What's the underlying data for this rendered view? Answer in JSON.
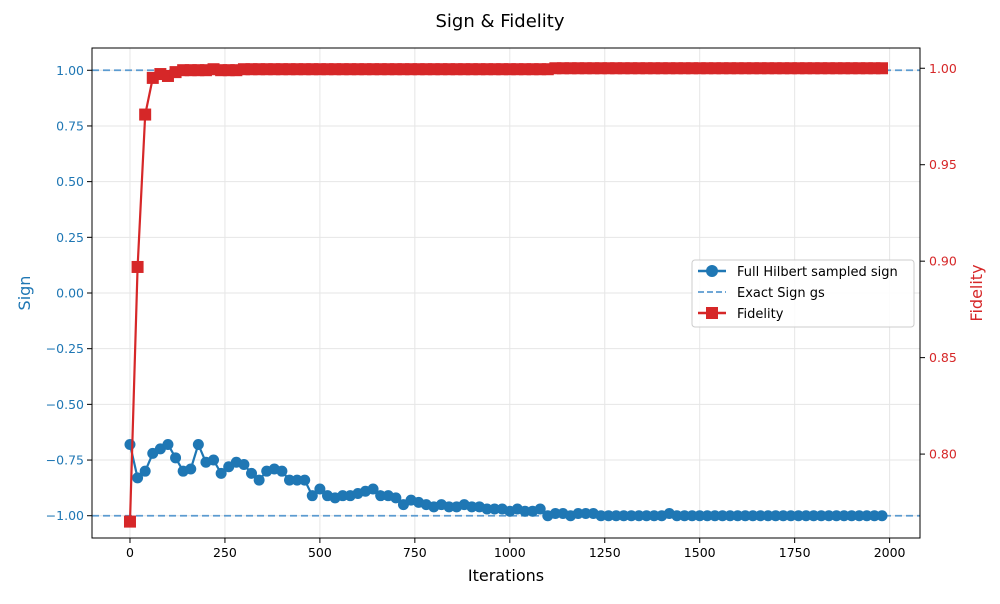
{
  "chart_data": {
    "type": "line",
    "title": "Sign & Fidelity",
    "xlabel": "Iterations",
    "ylabel_left": "Sign",
    "ylabel_right": "Fidelity",
    "xlim": [
      -100,
      2080
    ],
    "ylim_left": [
      -1.1,
      1.1
    ],
    "ylim_right": [
      0.7565,
      1.0105
    ],
    "x_ticks": [
      0,
      250,
      500,
      750,
      1000,
      1250,
      1500,
      1750,
      2000
    ],
    "y_ticks_left": [
      -1.0,
      -0.75,
      -0.5,
      -0.25,
      0.0,
      0.25,
      0.5,
      0.75,
      1.0
    ],
    "y_ticks_left_labels": [
      "−1.00",
      "−0.75",
      "−0.50",
      "−0.25",
      "0.00",
      "0.25",
      "0.50",
      "0.75",
      "1.00"
    ],
    "y_ticks_right": [
      0.8,
      0.85,
      0.9,
      0.95,
      1.0
    ],
    "y_ticks_right_labels": [
      "0.80",
      "0.85",
      "0.90",
      "0.95",
      "1.00"
    ],
    "grid": true,
    "legend_position": "center-right",
    "colors": {
      "sign": "#1f77b4",
      "fidelity": "#d62728",
      "exact": "#5b9bd0"
    },
    "series": [
      {
        "name": "Full Hilbert sampled sign",
        "axis": "left",
        "marker": "circle",
        "x": [
          0,
          20,
          40,
          60,
          80,
          100,
          120,
          140,
          160,
          180,
          200,
          220,
          240,
          260,
          280,
          300,
          320,
          340,
          360,
          380,
          400,
          420,
          440,
          460,
          480,
          500,
          520,
          540,
          560,
          580,
          600,
          620,
          640,
          660,
          680,
          700,
          720,
          740,
          760,
          780,
          800,
          820,
          840,
          860,
          880,
          900,
          920,
          940,
          960,
          980,
          1000,
          1020,
          1040,
          1060,
          1080,
          1100,
          1120,
          1140,
          1160,
          1180,
          1200,
          1220,
          1240,
          1260,
          1280,
          1300,
          1320,
          1340,
          1360,
          1380,
          1400,
          1420,
          1440,
          1460,
          1480,
          1500,
          1520,
          1540,
          1560,
          1580,
          1600,
          1620,
          1640,
          1660,
          1680,
          1700,
          1720,
          1740,
          1760,
          1780,
          1800,
          1820,
          1840,
          1860,
          1880,
          1900,
          1920,
          1940,
          1960,
          1980
        ],
        "values": [
          -0.68,
          -0.83,
          -0.8,
          -0.72,
          -0.7,
          -0.68,
          -0.74,
          -0.8,
          -0.79,
          -0.68,
          -0.76,
          -0.75,
          -0.81,
          -0.78,
          -0.76,
          -0.77,
          -0.81,
          -0.84,
          -0.8,
          -0.79,
          -0.8,
          -0.84,
          -0.84,
          -0.84,
          -0.91,
          -0.88,
          -0.91,
          -0.92,
          -0.91,
          -0.91,
          -0.9,
          -0.89,
          -0.88,
          -0.91,
          -0.91,
          -0.92,
          -0.95,
          -0.93,
          -0.94,
          -0.95,
          -0.96,
          -0.95,
          -0.96,
          -0.96,
          -0.95,
          -0.96,
          -0.96,
          -0.97,
          -0.97,
          -0.97,
          -0.98,
          -0.97,
          -0.98,
          -0.98,
          -0.97,
          -1.0,
          -0.99,
          -0.99,
          -1.0,
          -0.99,
          -0.99,
          -0.99,
          -1.0,
          -1.0,
          -1.0,
          -1.0,
          -1.0,
          -1.0,
          -1.0,
          -1.0,
          -1.0,
          -0.99,
          -1.0,
          -1.0,
          -1.0,
          -1.0,
          -1.0,
          -1.0,
          -1.0,
          -1.0,
          -1.0,
          -1.0,
          -1.0,
          -1.0,
          -1.0,
          -1.0,
          -1.0,
          -1.0,
          -1.0,
          -1.0,
          -1.0,
          -1.0,
          -1.0,
          -1.0,
          -1.0,
          -1.0,
          -1.0,
          -1.0,
          -1.0,
          -1.0
        ]
      },
      {
        "name": "Exact Sign gs",
        "axis": "left",
        "style": "dashed",
        "hlines": [
          1.0,
          -1.0
        ]
      },
      {
        "name": "Fidelity",
        "axis": "right",
        "marker": "square",
        "x": [
          0,
          20,
          40,
          60,
          80,
          100,
          120,
          140,
          160,
          180,
          200,
          220,
          240,
          260,
          280,
          300,
          320,
          340,
          360,
          380,
          400,
          420,
          440,
          460,
          480,
          500,
          520,
          540,
          560,
          580,
          600,
          620,
          640,
          660,
          680,
          700,
          720,
          740,
          760,
          780,
          800,
          820,
          840,
          860,
          880,
          900,
          920,
          940,
          960,
          980,
          1000,
          1020,
          1040,
          1060,
          1080,
          1100,
          1120,
          1140,
          1160,
          1180,
          1200,
          1220,
          1240,
          1260,
          1280,
          1300,
          1320,
          1340,
          1360,
          1380,
          1400,
          1420,
          1440,
          1460,
          1480,
          1500,
          1520,
          1540,
          1560,
          1580,
          1600,
          1620,
          1640,
          1660,
          1680,
          1700,
          1720,
          1740,
          1760,
          1780,
          1800,
          1820,
          1840,
          1860,
          1880,
          1900,
          1920,
          1940,
          1960,
          1980
        ],
        "values": [
          0.765,
          0.897,
          0.976,
          0.995,
          0.997,
          0.996,
          0.998,
          0.999,
          0.999,
          0.999,
          0.999,
          0.9995,
          0.999,
          0.999,
          0.999,
          0.9995,
          0.9995,
          0.9995,
          0.9995,
          0.9995,
          0.9995,
          0.9995,
          0.9995,
          0.9995,
          0.9995,
          0.9995,
          0.9995,
          0.9995,
          0.9995,
          0.9995,
          0.9995,
          0.9995,
          0.9995,
          0.9995,
          0.9995,
          0.9995,
          0.9995,
          0.9995,
          0.9995,
          0.9995,
          0.9995,
          0.9995,
          0.9995,
          0.9995,
          0.9995,
          0.9995,
          0.9995,
          0.9995,
          0.9995,
          0.9995,
          0.9995,
          0.9995,
          0.9995,
          0.9995,
          0.9995,
          0.9995,
          1.0,
          1.0,
          1.0,
          1.0,
          1.0,
          1.0,
          1.0,
          1.0,
          1.0,
          1.0,
          1.0,
          1.0,
          1.0,
          1.0,
          1.0,
          1.0,
          1.0,
          1.0,
          1.0,
          1.0,
          1.0,
          1.0,
          1.0,
          1.0,
          1.0,
          1.0,
          1.0,
          1.0,
          1.0,
          1.0,
          1.0,
          1.0,
          1.0,
          1.0,
          1.0,
          1.0,
          1.0,
          1.0,
          1.0,
          1.0,
          1.0,
          1.0,
          1.0,
          1.0
        ]
      }
    ]
  }
}
